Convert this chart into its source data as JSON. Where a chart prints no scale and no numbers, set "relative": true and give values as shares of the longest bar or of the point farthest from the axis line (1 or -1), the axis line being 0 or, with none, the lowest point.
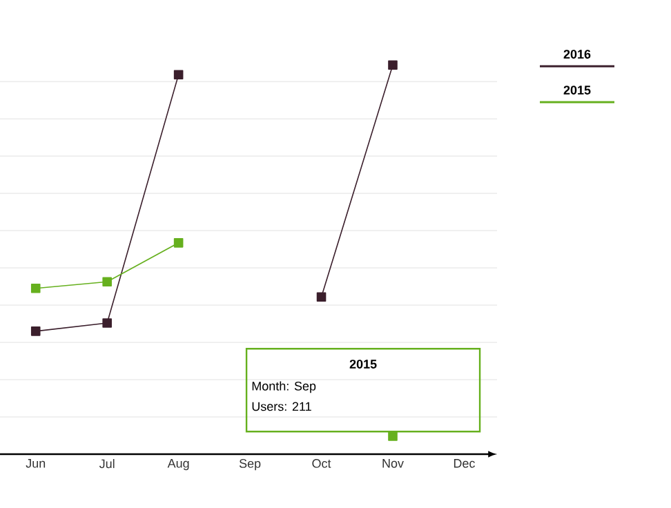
{
  "chart_data": {
    "type": "line",
    "relative": true,
    "marker": "square",
    "grid": "y",
    "legend": "top right",
    "categories": [
      "Jun",
      "Jul",
      "Aug",
      "Sep",
      "Oct",
      "Nov",
      "Dec"
    ],
    "series": [
      {
        "name": "2016",
        "color": "#3b1f2c",
        "values": [
          0.316,
          0.337,
          0.975,
          null,
          0.404,
          1,
          null
        ]
      },
      {
        "name": "2015",
        "color": "#66b01e",
        "values": [
          0.426,
          0.443,
          0.543,
          null,
          null,
          0.046,
          null
        ]
      }
    ],
    "annotations": [
      "2015",
      "Month: Sep",
      "Users: 211"
    ]
  }
}
